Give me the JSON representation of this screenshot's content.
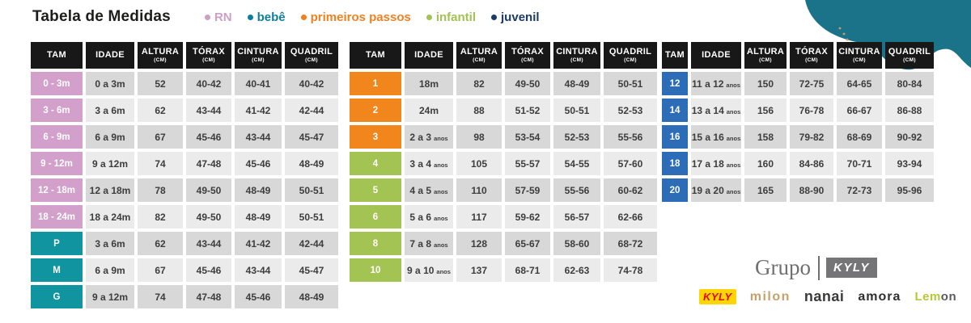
{
  "title": "Tabela de Medidas",
  "legend": [
    {
      "label": "RN",
      "color": "#cc9fc6"
    },
    {
      "label": "bebê",
      "color": "#0d7f9c"
    },
    {
      "label": "primeiros passos",
      "color": "#ef8122"
    },
    {
      "label": "infantil",
      "color": "#a2c353"
    },
    {
      "label": "juvenil",
      "color": "#1c3a68"
    }
  ],
  "columns": [
    {
      "label": "TAM",
      "sub": "",
      "slug": "tam"
    },
    {
      "label": "IDADE",
      "sub": "",
      "slug": "idade"
    },
    {
      "label": "ALTURA",
      "sub": "(CM)",
      "slug": "altura"
    },
    {
      "label": "TÓRAX",
      "sub": "(CM)",
      "slug": "torax"
    },
    {
      "label": "CINTURA",
      "sub": "(CM)",
      "slug": "cintura"
    },
    {
      "label": "QUADRIL",
      "sub": "(CM)",
      "slug": "quadril"
    }
  ],
  "category_colors": {
    "rn": "#d2a0ca",
    "bebe": "#1095a0",
    "primeiros": "#f1861d",
    "infantil": "#a3c353",
    "juvenil": "#2d6db7"
  },
  "tables": [
    {
      "name": "rn-bebe",
      "rows": [
        {
          "cat": "rn",
          "tam": "0 - 3m",
          "idade": "0 a 3m",
          "idade_small": "",
          "altura": "52",
          "torax": "40-42",
          "cintura": "40-41",
          "quadril": "40-42"
        },
        {
          "cat": "rn",
          "tam": "3 - 6m",
          "idade": "3 a 6m",
          "idade_small": "",
          "altura": "62",
          "torax": "43-44",
          "cintura": "41-42",
          "quadril": "42-44"
        },
        {
          "cat": "rn",
          "tam": "6 - 9m",
          "idade": "6 a 9m",
          "idade_small": "",
          "altura": "67",
          "torax": "45-46",
          "cintura": "43-44",
          "quadril": "45-47"
        },
        {
          "cat": "rn",
          "tam": "9 - 12m",
          "idade": "9 a 12m",
          "idade_small": "",
          "altura": "74",
          "torax": "47-48",
          "cintura": "45-46",
          "quadril": "48-49"
        },
        {
          "cat": "rn",
          "tam": "12 - 18m",
          "idade": "12 a 18m",
          "idade_small": "",
          "altura": "78",
          "torax": "49-50",
          "cintura": "48-49",
          "quadril": "50-51"
        },
        {
          "cat": "rn",
          "tam": "18 - 24m",
          "idade": "18 a 24m",
          "idade_small": "",
          "altura": "82",
          "torax": "49-50",
          "cintura": "48-49",
          "quadril": "50-51"
        },
        {
          "cat": "bebe",
          "tam": "P",
          "idade": "3 a 6m",
          "idade_small": "",
          "altura": "62",
          "torax": "43-44",
          "cintura": "41-42",
          "quadril": "42-44"
        },
        {
          "cat": "bebe",
          "tam": "M",
          "idade": "6 a 9m",
          "idade_small": "",
          "altura": "67",
          "torax": "45-46",
          "cintura": "43-44",
          "quadril": "45-47"
        },
        {
          "cat": "bebe",
          "tam": "G",
          "idade": "9 a 12m",
          "idade_small": "",
          "altura": "74",
          "torax": "47-48",
          "cintura": "45-46",
          "quadril": "48-49"
        }
      ]
    },
    {
      "name": "primeiros-infantil",
      "rows": [
        {
          "cat": "primeiros",
          "tam": "1",
          "idade": "18m",
          "idade_small": "",
          "altura": "82",
          "torax": "49-50",
          "cintura": "48-49",
          "quadril": "50-51"
        },
        {
          "cat": "primeiros",
          "tam": "2",
          "idade": "24m",
          "idade_small": "",
          "altura": "88",
          "torax": "51-52",
          "cintura": "50-51",
          "quadril": "52-53"
        },
        {
          "cat": "primeiros",
          "tam": "3",
          "idade": "2 a 3",
          "idade_small": "anos",
          "altura": "98",
          "torax": "53-54",
          "cintura": "52-53",
          "quadril": "55-56"
        },
        {
          "cat": "infantil",
          "tam": "4",
          "idade": "3 a 4",
          "idade_small": "anos",
          "altura": "105",
          "torax": "55-57",
          "cintura": "54-55",
          "quadril": "57-60"
        },
        {
          "cat": "infantil",
          "tam": "5",
          "idade": "4 a 5",
          "idade_small": "anos",
          "altura": "110",
          "torax": "57-59",
          "cintura": "55-56",
          "quadril": "60-62"
        },
        {
          "cat": "infantil",
          "tam": "6",
          "idade": "5 a 6",
          "idade_small": "anos",
          "altura": "117",
          "torax": "59-62",
          "cintura": "56-57",
          "quadril": "62-66"
        },
        {
          "cat": "infantil",
          "tam": "8",
          "idade": "7 a 8",
          "idade_small": "anos",
          "altura": "128",
          "torax": "65-67",
          "cintura": "58-60",
          "quadril": "68-72"
        },
        {
          "cat": "infantil",
          "tam": "10",
          "idade": "9 a 10",
          "idade_small": "anos",
          "altura": "137",
          "torax": "68-71",
          "cintura": "62-63",
          "quadril": "74-78"
        }
      ]
    },
    {
      "name": "juvenil",
      "rows": [
        {
          "cat": "juvenil",
          "tam": "12",
          "idade": "11 a 12",
          "idade_small": "anos",
          "altura": "150",
          "torax": "72-75",
          "cintura": "64-65",
          "quadril": "80-84"
        },
        {
          "cat": "juvenil",
          "tam": "14",
          "idade": "13 a 14",
          "idade_small": "anos",
          "altura": "156",
          "torax": "76-78",
          "cintura": "66-67",
          "quadril": "86-88"
        },
        {
          "cat": "juvenil",
          "tam": "16",
          "idade": "15 a 16",
          "idade_small": "anos",
          "altura": "158",
          "torax": "79-82",
          "cintura": "68-69",
          "quadril": "90-92"
        },
        {
          "cat": "juvenil",
          "tam": "18",
          "idade": "17 a 18",
          "idade_small": "anos",
          "altura": "160",
          "torax": "84-86",
          "cintura": "70-71",
          "quadril": "93-94"
        },
        {
          "cat": "juvenil",
          "tam": "20",
          "idade": "19 a 20",
          "idade_small": "anos",
          "altura": "165",
          "torax": "88-90",
          "cintura": "72-73",
          "quadril": "95-96"
        }
      ]
    }
  ],
  "footer": {
    "grupo_text": "Grupo",
    "grupo_brand": "KYLY",
    "brands": [
      {
        "name": "KYLY",
        "style": "kyly"
      },
      {
        "name": "milon",
        "style": "milon"
      },
      {
        "name": "nanai",
        "style": "nanai"
      },
      {
        "name": "amora",
        "style": "amora"
      },
      {
        "name": "Lemon",
        "style": "lemon",
        "part1": "Lem",
        "part2": "on"
      }
    ]
  },
  "decor": {
    "blob_color": "#1a7389",
    "dot_color": "#cba05e"
  }
}
